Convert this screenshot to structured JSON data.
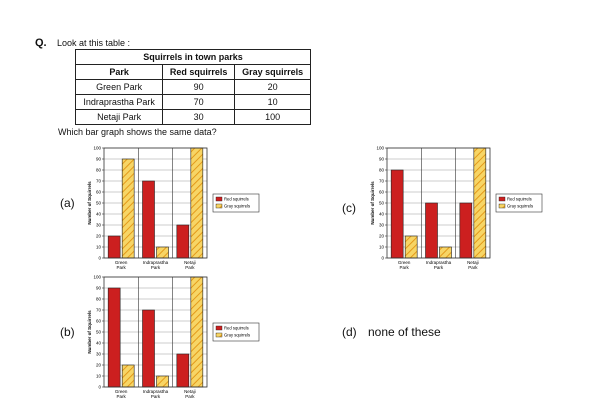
{
  "question": {
    "label": "Q.",
    "intro": "Look at this table :",
    "prompt": "Which bar graph shows the same data?"
  },
  "table": {
    "title": "Squirrels in town parks",
    "headers": [
      "Park",
      "Red squirrels",
      "Gray squirrels"
    ],
    "rows": [
      [
        "Green Park",
        "90",
        "20"
      ],
      [
        "Indraprastha Park",
        "70",
        "10"
      ],
      [
        "Netaji Park",
        "30",
        "100"
      ]
    ]
  },
  "options": {
    "a": "(a)",
    "b": "(b)",
    "c": "(c)",
    "d": "(d)",
    "d_text": "none of these"
  },
  "colors": {
    "red": "#cc1f1f",
    "gray_fill": "#f7d565",
    "gray_stripe": "#e39a1a",
    "frame": "#333333"
  },
  "chart_data": [
    {
      "option": "(a)",
      "type": "bar",
      "categories": [
        [
          "Green",
          "Park"
        ],
        [
          "Indraprastha",
          "Park"
        ],
        [
          "Netaji",
          "Park"
        ]
      ],
      "series": [
        {
          "name": "Red squirrels",
          "values": [
            20,
            70,
            30
          ]
        },
        {
          "name": "Gray squirrels",
          "values": [
            90,
            10,
            100
          ]
        }
      ],
      "ylabel": "Number of Squirrels",
      "ylim": [
        0,
        100
      ],
      "yticks": [
        0,
        10,
        20,
        30,
        40,
        50,
        60,
        70,
        80,
        90,
        100
      ],
      "legend": "right",
      "grid": "horizontal"
    },
    {
      "option": "(b)",
      "type": "bar",
      "categories": [
        [
          "Green",
          "Park"
        ],
        [
          "Indraprastha",
          "Park"
        ],
        [
          "Netaji",
          "Park"
        ]
      ],
      "series": [
        {
          "name": "Red squirrels",
          "values": [
            90,
            70,
            30
          ]
        },
        {
          "name": "Gray squirrels",
          "values": [
            20,
            10,
            100
          ]
        }
      ],
      "ylabel": "Number of Squirrels",
      "ylim": [
        0,
        100
      ],
      "yticks": [
        0,
        10,
        20,
        30,
        40,
        50,
        60,
        70,
        80,
        90,
        100
      ],
      "legend": "right",
      "grid": "horizontal"
    },
    {
      "option": "(c)",
      "type": "bar",
      "categories": [
        [
          "Green",
          "Park"
        ],
        [
          "Indraprastha",
          "Park"
        ],
        [
          "Netaji",
          "Park"
        ]
      ],
      "series": [
        {
          "name": "Red squirrels",
          "values": [
            80,
            50,
            50
          ]
        },
        {
          "name": "Gray squirrels",
          "values": [
            20,
            10,
            100
          ]
        }
      ],
      "ylabel": "Number of Squirrels",
      "ylim": [
        0,
        100
      ],
      "yticks": [
        0,
        10,
        20,
        30,
        40,
        50,
        60,
        70,
        80,
        90,
        100
      ],
      "legend": "right",
      "grid": "horizontal"
    }
  ]
}
